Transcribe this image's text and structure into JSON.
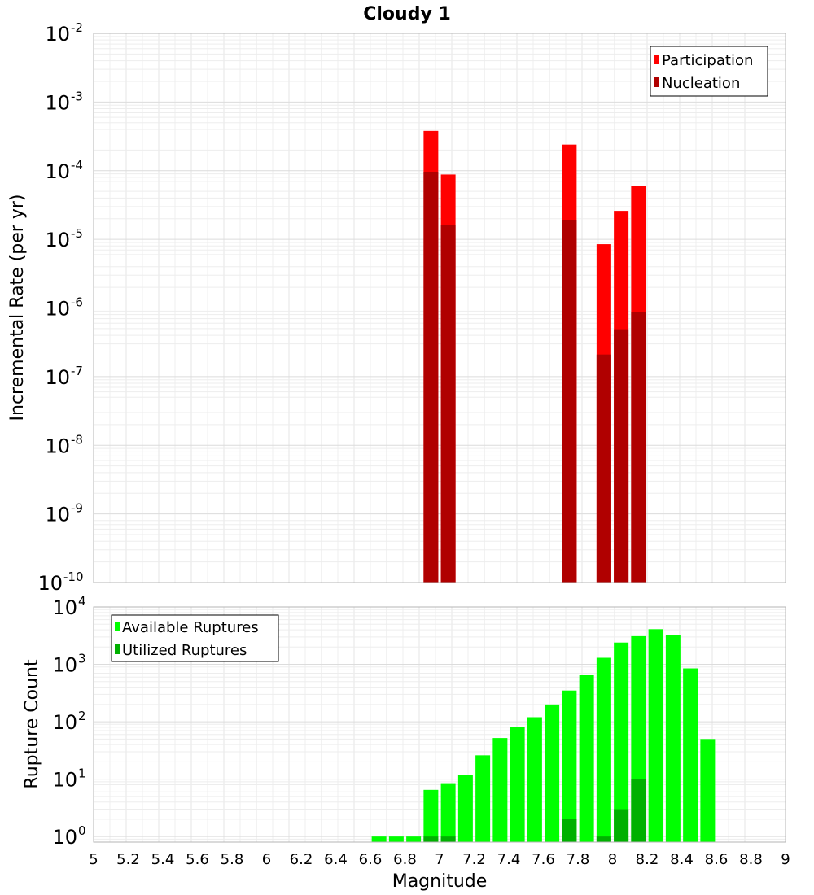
{
  "chart_title": "Cloudy 1",
  "chart_data": [
    {
      "type": "bar",
      "title": "Cloudy 1",
      "xlabel": "Magnitude",
      "ylabel": "Incremental Rate (per yr)",
      "yscale": "log",
      "xlim": [
        5,
        9
      ],
      "ylim": [
        1e-10,
        0.01
      ],
      "y_tick_exponents": [
        "-10",
        "-9",
        "-8",
        "-7",
        "-6",
        "-5",
        "-4",
        "-3",
        "-2"
      ],
      "y_tick_base": "10",
      "grid": true,
      "legend_position": "top-right",
      "series": [
        {
          "name": "Participation",
          "color": "#ff0000",
          "x": [
            6.95,
            7.05,
            7.75,
            7.95,
            8.05,
            8.15
          ],
          "values": [
            0.00038,
            8.8e-05,
            0.00024,
            8.5e-06,
            2.6e-05,
            6e-05
          ]
        },
        {
          "name": "Nucleation",
          "color": "#b00000",
          "x": [
            6.95,
            7.05,
            7.75,
            7.95,
            8.05,
            8.15
          ],
          "values": [
            9.5e-05,
            1.6e-05,
            1.9e-05,
            2.1e-07,
            4.9e-07,
            8.8e-07
          ]
        }
      ]
    },
    {
      "type": "bar",
      "xlabel": "Magnitude",
      "ylabel": "Rupture Count",
      "yscale": "log",
      "xlim": [
        5,
        9
      ],
      "ylim": [
        0.8,
        10000
      ],
      "y_tick_exponents": [
        "0",
        "1",
        "2",
        "3",
        "4"
      ],
      "y_tick_base": "10",
      "x_tick_labels": [
        "5",
        "5.2",
        "5.4",
        "5.6",
        "5.8",
        "6",
        "6.2",
        "6.4",
        "6.6",
        "6.8",
        "7",
        "7.2",
        "7.4",
        "7.6",
        "7.8",
        "8",
        "8.2",
        "8.4",
        "8.6",
        "8.8",
        "9"
      ],
      "grid": true,
      "legend_position": "top-left",
      "series": [
        {
          "name": "Available Ruptures",
          "color": "#00ff00",
          "x": [
            6.65,
            6.75,
            6.85,
            6.95,
            7.05,
            7.15,
            7.25,
            7.35,
            7.45,
            7.55,
            7.65,
            7.75,
            7.85,
            7.95,
            8.05,
            8.15,
            8.25,
            8.35,
            8.45,
            8.55
          ],
          "values": [
            1,
            1,
            1,
            6.5,
            8.5,
            12,
            26,
            52,
            80,
            120,
            200,
            350,
            650,
            1300,
            2400,
            3100,
            4100,
            3200,
            850,
            50
          ]
        },
        {
          "name": "Utilized Ruptures",
          "color": "#00b000",
          "x": [
            6.95,
            7.05,
            7.75,
            7.95,
            8.05,
            8.15
          ],
          "values": [
            1,
            1,
            2,
            1,
            3,
            10
          ]
        }
      ]
    }
  ]
}
